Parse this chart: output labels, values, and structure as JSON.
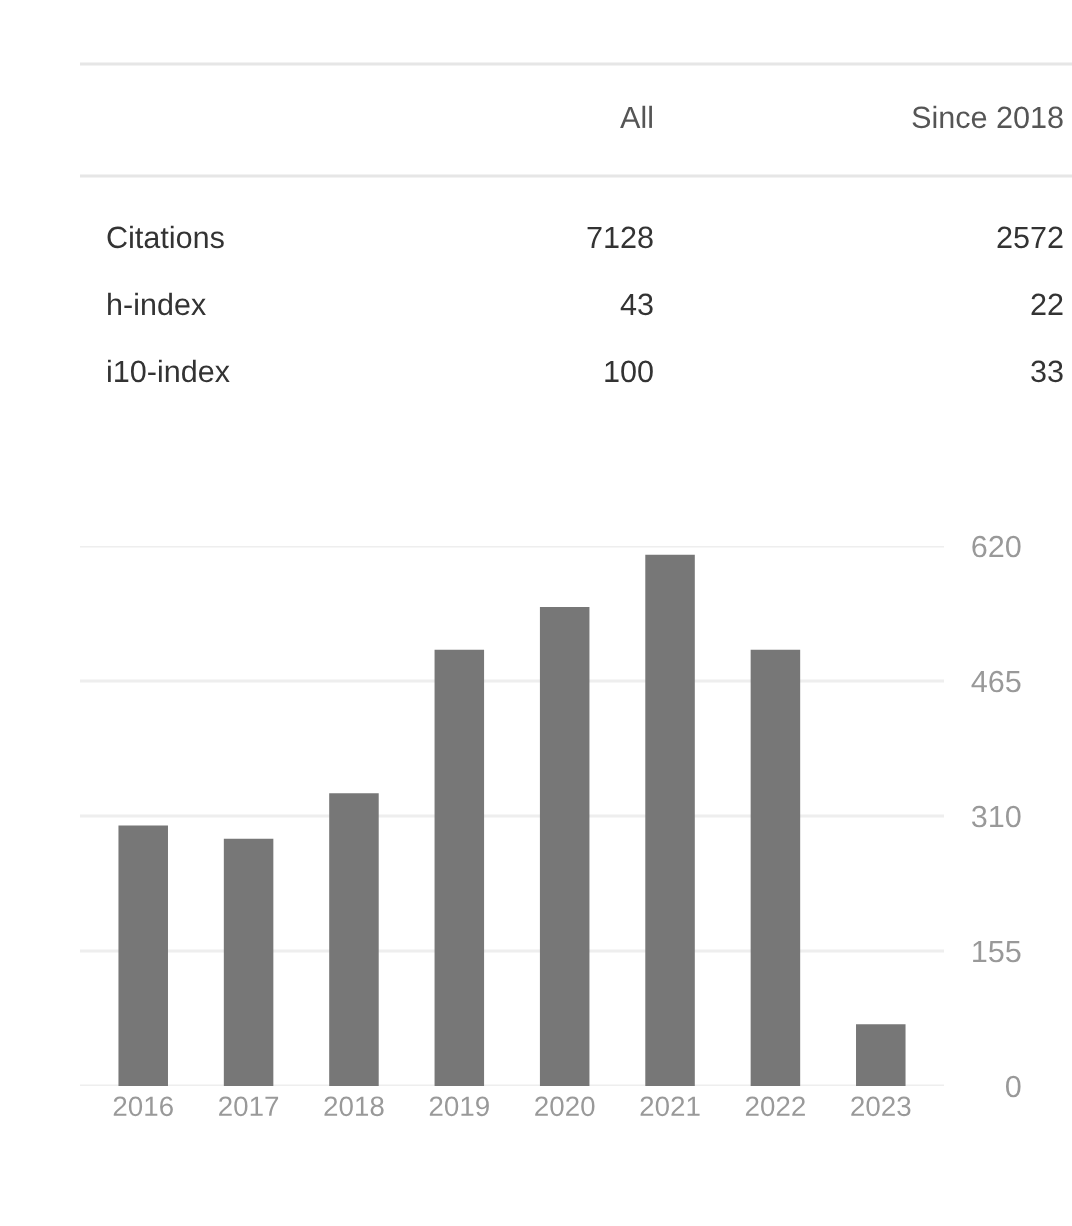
{
  "chart_data": [
    {
      "type": "other",
      "annotations": [
        "All",
        "Since 2018",
        "Citations",
        "7128",
        "2572",
        "h-index",
        "43",
        "22",
        "i10-index",
        "100",
        "33"
      ]
    },
    {
      "type": "bar",
      "categories": [
        "2016",
        "2017",
        "2018",
        "2019",
        "2020",
        "2021",
        "2022",
        "2023"
      ],
      "values": [
        299,
        284,
        336,
        501,
        550,
        610,
        501,
        71
      ],
      "color": "#777777",
      "ylim": [
        0,
        620
      ],
      "yticks": [
        0,
        155,
        310,
        465,
        620
      ],
      "grid": "y"
    }
  ]
}
